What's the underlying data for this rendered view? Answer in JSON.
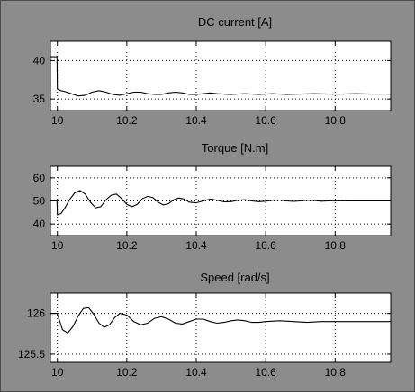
{
  "colors": {
    "figure_bg": "#8c8c8c",
    "axes_bg": "#ffffff",
    "trace": "#000000",
    "grid": "#000000"
  },
  "chart_data": [
    {
      "type": "line",
      "title": "DC current [A]",
      "xlabel": "",
      "ylabel": "",
      "xlim": [
        9.98,
        10.96
      ],
      "ylim": [
        33.5,
        42.5
      ],
      "xticks": [
        10,
        10.2,
        10.4,
        10.6,
        10.8
      ],
      "xticklabels": [
        "10",
        "10.2",
        "10.4",
        "10.6",
        "10.8"
      ],
      "yticks": [
        35,
        40
      ],
      "yticklabels": [
        "35",
        "40"
      ],
      "grid": true,
      "series": [
        {
          "x": [
            9.98,
            9.999,
            10.0,
            10.01,
            10.02,
            10.04,
            10.06,
            10.08,
            10.1,
            10.12,
            10.14,
            10.16,
            10.18,
            10.2,
            10.22,
            10.24,
            10.26,
            10.28,
            10.3,
            10.32,
            10.34,
            10.36,
            10.38,
            10.4,
            10.42,
            10.44,
            10.46,
            10.5,
            10.54,
            10.58,
            10.62,
            10.66,
            10.7,
            10.74,
            10.78,
            10.82,
            10.86,
            10.9,
            10.96
          ],
          "y": [
            40.5,
            40.5,
            36.3,
            36.1,
            36.0,
            35.7,
            35.4,
            35.5,
            35.9,
            36.1,
            35.9,
            35.6,
            35.5,
            35.7,
            35.9,
            35.9,
            35.7,
            35.6,
            35.6,
            35.8,
            35.9,
            35.8,
            35.6,
            35.6,
            35.7,
            35.8,
            35.7,
            35.6,
            35.7,
            35.6,
            35.7,
            35.6,
            35.65,
            35.7,
            35.65,
            35.65,
            35.7,
            35.65,
            35.65
          ]
        }
      ]
    },
    {
      "type": "line",
      "title": "Torque [N.m]",
      "xlabel": "",
      "ylabel": "",
      "xlim": [
        9.98,
        10.96
      ],
      "ylim": [
        35,
        65
      ],
      "xticks": [
        10,
        10.2,
        10.4,
        10.6,
        10.8
      ],
      "xticklabels": [
        "10",
        "10.2",
        "10.4",
        "10.6",
        "10.8"
      ],
      "yticks": [
        40,
        50,
        60
      ],
      "yticklabels": [
        "40",
        "50",
        "60"
      ],
      "grid": true,
      "series": [
        {
          "x": [
            9.98,
            9.999,
            10.0,
            10.01,
            10.02,
            10.035,
            10.05,
            10.065,
            10.08,
            10.095,
            10.11,
            10.125,
            10.14,
            10.155,
            10.17,
            10.185,
            10.2,
            10.215,
            10.23,
            10.245,
            10.26,
            10.275,
            10.29,
            10.305,
            10.32,
            10.335,
            10.35,
            10.365,
            10.38,
            10.4,
            10.42,
            10.44,
            10.46,
            10.48,
            10.5,
            10.52,
            10.54,
            10.56,
            10.58,
            10.6,
            10.62,
            10.64,
            10.66,
            10.68,
            10.7,
            10.72,
            10.74,
            10.76,
            10.78,
            10.8,
            10.84,
            10.88,
            10.92,
            10.96
          ],
          "y": [
            50,
            50,
            44.0,
            44.5,
            46.5,
            50.5,
            53.5,
            54.5,
            53.0,
            49.5,
            47.0,
            47.5,
            50.5,
            52.5,
            53.0,
            51.0,
            48.5,
            47.5,
            48.5,
            51.0,
            52.0,
            51.5,
            49.5,
            48.3,
            48.8,
            50.5,
            51.3,
            50.8,
            49.5,
            49.2,
            50.0,
            50.8,
            50.3,
            49.6,
            49.7,
            50.3,
            50.5,
            50.0,
            49.7,
            49.9,
            50.3,
            50.4,
            50.0,
            49.8,
            50.0,
            50.3,
            50.2,
            49.9,
            50.0,
            50.1,
            50.0,
            50.0,
            50.0,
            50.0
          ]
        }
      ]
    },
    {
      "type": "line",
      "title": "Speed [rad/s]",
      "xlabel": "",
      "ylabel": "",
      "xlim": [
        9.98,
        10.96
      ],
      "ylim": [
        125.4,
        126.25
      ],
      "xticks": [
        10,
        10.2,
        10.4,
        10.6,
        10.8
      ],
      "xticklabels": [
        "10",
        "10.2",
        "10.4",
        "10.6",
        "10.8"
      ],
      "yticks": [
        125.5,
        126
      ],
      "yticklabels": [
        "125.5",
        "126"
      ],
      "grid": true,
      "series": [
        {
          "x": [
            9.98,
            9.999,
            10.005,
            10.015,
            10.03,
            10.045,
            10.06,
            10.075,
            10.09,
            10.105,
            10.12,
            10.135,
            10.15,
            10.165,
            10.18,
            10.2,
            10.22,
            10.24,
            10.26,
            10.28,
            10.3,
            10.32,
            10.34,
            10.36,
            10.38,
            10.4,
            10.42,
            10.44,
            10.46,
            10.48,
            10.5,
            10.52,
            10.54,
            10.56,
            10.58,
            10.6,
            10.64,
            10.68,
            10.72,
            10.76,
            10.8,
            10.84,
            10.88,
            10.92,
            10.96
          ],
          "y": [
            126.0,
            126.0,
            125.93,
            125.8,
            125.76,
            125.84,
            125.97,
            126.06,
            126.07,
            125.99,
            125.88,
            125.83,
            125.86,
            125.95,
            126.0,
            125.98,
            125.9,
            125.86,
            125.88,
            125.94,
            125.96,
            125.93,
            125.88,
            125.87,
            125.9,
            125.93,
            125.93,
            125.9,
            125.88,
            125.89,
            125.91,
            125.92,
            125.91,
            125.89,
            125.89,
            125.9,
            125.91,
            125.9,
            125.89,
            125.9,
            125.9,
            125.9,
            125.9,
            125.9,
            125.9
          ]
        }
      ]
    }
  ]
}
